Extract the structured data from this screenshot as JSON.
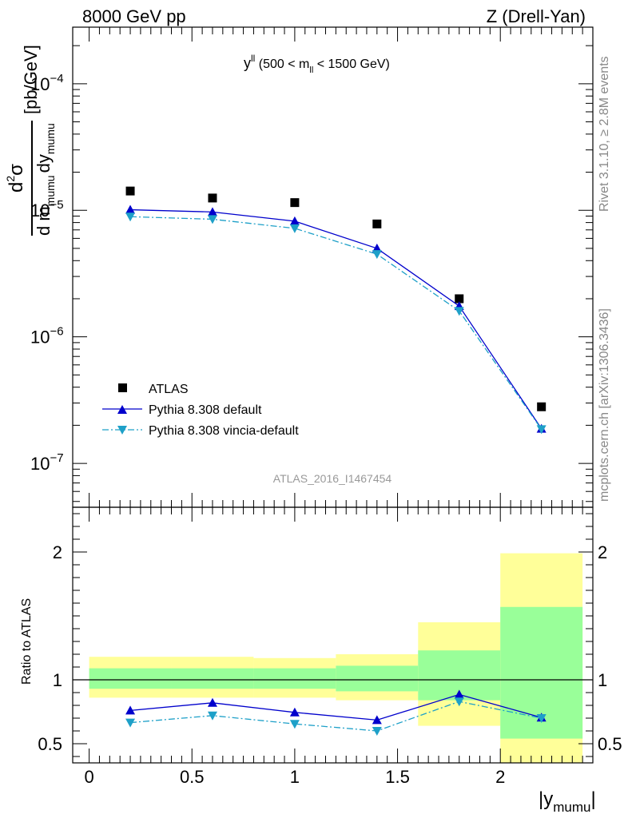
{
  "header": {
    "left": "8000 GeV pp",
    "right": "Z (Drell-Yan)"
  },
  "side_labels": {
    "top": "Rivet 3.1.10, ≥ 2.8M events",
    "bottom": "mcplots.cern.ch [arXiv:1306.3436]"
  },
  "chart_data": [
    {
      "type": "line",
      "panel": "main",
      "title": "yᴸᴸ (500 < mₗₗ < 1500 GeV)",
      "title_parts": {
        "var": "y",
        "var_sup": "ll",
        "open": " (500 < m",
        "m_sub": "ll",
        "close": " < 1500 GeV)"
      },
      "ylabel": {
        "num": "d²σ",
        "den": "d mₘᵤₘᵤ dyₘᵤₘᵤ",
        "unit": "[pb/GeV]"
      },
      "ylabel_parts": {
        "num_d": "d",
        "num_sup": "2",
        "num_sigma": "σ",
        "den_dm": "d m",
        "den_sub1": "mumu",
        "den_dy": "dy",
        "den_sub2": "mumu",
        "unit": "[pb/GeV]"
      },
      "yscale": "log",
      "ylim": [
        4.5e-08,
        0.00028
      ],
      "xlim": [
        -0.08,
        2.45
      ],
      "y_ticklabels": [
        {
          "base": "10",
          "exp": "−4",
          "value": 0.0001
        },
        {
          "base": "10",
          "exp": "−5",
          "value": 1e-05
        },
        {
          "base": "10",
          "exp": "−6",
          "value": 1e-06
        },
        {
          "base": "10",
          "exp": "−7",
          "value": 1e-07
        }
      ],
      "x": [
        0.2,
        0.6,
        1.0,
        1.4,
        1.8,
        2.2
      ],
      "series": [
        {
          "name": "ATLAS",
          "marker": "square",
          "color": "#000000",
          "values": [
            1.42e-05,
            1.25e-05,
            1.15e-05,
            7.8e-06,
            2e-06,
            2.8e-07
          ]
        },
        {
          "name": "Pythia 8.308 default",
          "marker": "triangle-up",
          "color": "#0000cc",
          "line": "solid",
          "values": [
            1.01e-05,
            9.7e-06,
            8.2e-06,
            5e-06,
            1.75e-06,
            1.88e-07
          ]
        },
        {
          "name": "Pythia 8.308 vincia-default",
          "marker": "triangle-down",
          "color": "#1ea0c8",
          "line": "dashdot",
          "values": [
            8.9e-06,
            8.5e-06,
            7.2e-06,
            4.5e-06,
            1.6e-06,
            1.86e-07
          ]
        }
      ],
      "legend": "bottom-left",
      "annotation": "ATLAS_2016_I1467454"
    },
    {
      "type": "line",
      "panel": "ratio",
      "ylabel": "Ratio to ATLAS",
      "xlabel": {
        "base": "|y",
        "sub": "mumu",
        "close": "|"
      },
      "ylim": [
        0.35,
        2.35
      ],
      "y_ticklabels": [
        "0.5",
        "1",
        "2"
      ],
      "y_ticks": [
        0.5,
        1,
        2
      ],
      "x_ticklabels": [
        "0",
        "0.5",
        "1",
        "1.5",
        "2"
      ],
      "x_ticks": [
        0,
        0.5,
        1,
        1.5,
        2
      ],
      "reference": 1,
      "bands": [
        {
          "x0": 0.0,
          "x1": 0.4,
          "inner": [
            0.93,
            1.09
          ],
          "outer": [
            0.86,
            1.18
          ]
        },
        {
          "x0": 0.4,
          "x1": 0.8,
          "inner": [
            0.93,
            1.09
          ],
          "outer": [
            0.86,
            1.18
          ]
        },
        {
          "x0": 0.8,
          "x1": 1.2,
          "inner": [
            0.93,
            1.09
          ],
          "outer": [
            0.86,
            1.17
          ]
        },
        {
          "x0": 1.2,
          "x1": 1.6,
          "inner": [
            0.91,
            1.11
          ],
          "outer": [
            0.84,
            1.2
          ]
        },
        {
          "x0": 1.6,
          "x1": 2.0,
          "inner": [
            0.84,
            1.23
          ],
          "outer": [
            0.64,
            1.45
          ]
        },
        {
          "x0": 2.0,
          "x1": 2.4,
          "inner": [
            0.54,
            1.57
          ],
          "outer": [
            0.35,
            1.99
          ]
        }
      ],
      "colors": {
        "inner": "#99ff99",
        "outer": "#ffff99"
      },
      "x": [
        0.2,
        0.6,
        1.0,
        1.4,
        1.8,
        2.2
      ],
      "series": [
        {
          "name": "Pythia 8.308 default",
          "marker": "triangle-up",
          "color": "#0000cc",
          "line": "solid",
          "values": [
            0.76,
            0.82,
            0.745,
            0.685,
            0.885,
            0.705
          ]
        },
        {
          "name": "Pythia 8.308 vincia-default",
          "marker": "triangle-down",
          "color": "#1ea0c8",
          "line": "dashdot",
          "values": [
            0.665,
            0.72,
            0.655,
            0.6,
            0.83,
            0.7
          ]
        }
      ]
    }
  ]
}
